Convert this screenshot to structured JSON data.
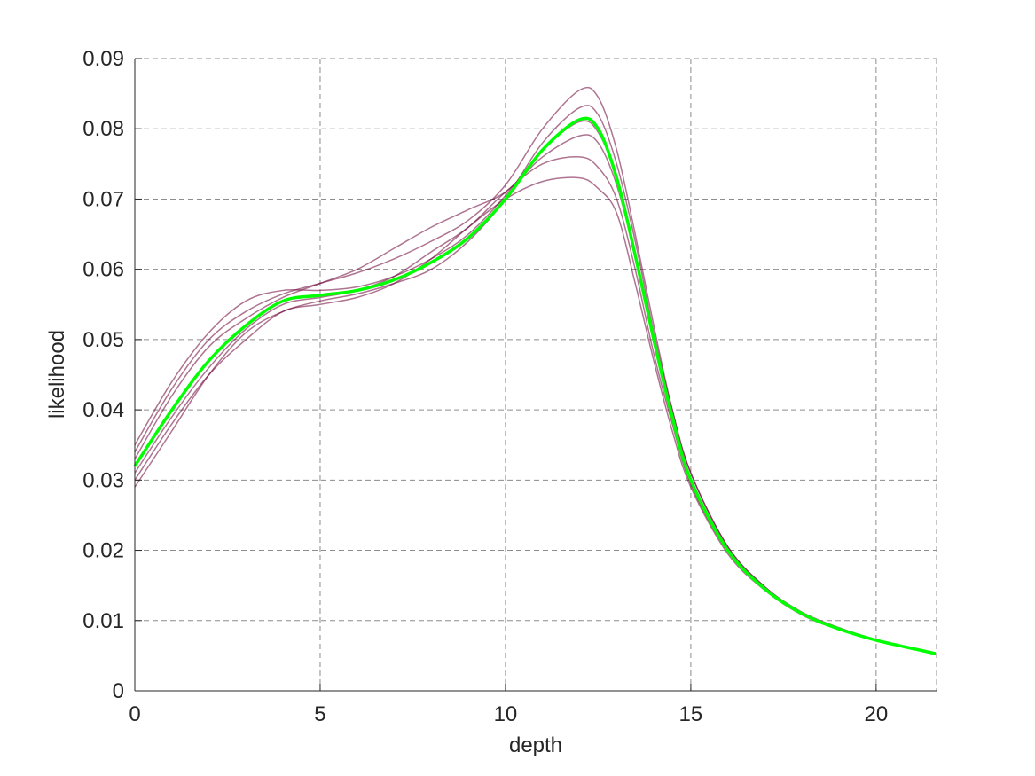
{
  "chart_data": {
    "type": "line",
    "xlabel": "depth",
    "ylabel": "likelihood",
    "xlim": [
      0,
      21.63
    ],
    "ylim": [
      0,
      0.09
    ],
    "xticks": [
      0,
      5,
      10,
      15,
      20
    ],
    "yticks": [
      0,
      0.01,
      0.02,
      0.03,
      0.04,
      0.05,
      0.06,
      0.07,
      0.08,
      0.09
    ],
    "grid": true,
    "x": [
      0,
      1,
      2,
      3,
      4,
      5,
      6,
      7,
      8,
      9,
      10,
      11,
      12,
      12.5,
      13,
      13.5,
      14,
      14.5,
      15,
      16,
      17,
      18,
      19,
      20,
      21,
      21.6
    ],
    "series": [
      {
        "color": "#6b0035",
        "values": [
          0.034,
          0.043,
          0.05,
          0.054,
          0.0565,
          0.058,
          0.0595,
          0.0615,
          0.064,
          0.067,
          0.072,
          0.08,
          0.0855,
          0.0845,
          0.077,
          0.065,
          0.052,
          0.04,
          0.031,
          0.0205,
          0.0148,
          0.0112,
          0.009,
          0.0073,
          0.006,
          0.0053
        ]
      },
      {
        "color": "#6b0035",
        "values": [
          0.03,
          0.038,
          0.045,
          0.05,
          0.054,
          0.055,
          0.056,
          0.058,
          0.0615,
          0.066,
          0.07,
          0.0725,
          0.073,
          0.0715,
          0.068,
          0.058,
          0.047,
          0.037,
          0.029,
          0.0195,
          0.0143,
          0.0108,
          0.0087,
          0.0072,
          0.006,
          0.0053
        ]
      },
      {
        "color": "#6b0035",
        "values": [
          0.033,
          0.042,
          0.049,
          0.053,
          0.056,
          0.058,
          0.06,
          0.063,
          0.066,
          0.0685,
          0.071,
          0.076,
          0.079,
          0.078,
          0.072,
          0.062,
          0.05,
          0.039,
          0.03,
          0.02,
          0.0145,
          0.011,
          0.0088,
          0.0072,
          0.006,
          0.0053
        ]
      },
      {
        "color": "#6b0035",
        "values": [
          0.029,
          0.037,
          0.045,
          0.051,
          0.054,
          0.0555,
          0.0565,
          0.058,
          0.06,
          0.064,
          0.07,
          0.078,
          0.083,
          0.082,
          0.075,
          0.064,
          0.051,
          0.04,
          0.031,
          0.0205,
          0.0148,
          0.011,
          0.0088,
          0.0073,
          0.006,
          0.0053
        ]
      },
      {
        "color": "#6b0035",
        "values": [
          0.035,
          0.044,
          0.051,
          0.0555,
          0.057,
          0.057,
          0.0575,
          0.059,
          0.0615,
          0.065,
          0.0705,
          0.077,
          0.081,
          0.0795,
          0.073,
          0.062,
          0.0495,
          0.0385,
          0.0295,
          0.0198,
          0.0144,
          0.0109,
          0.0087,
          0.0072,
          0.006,
          0.0053
        ]
      },
      {
        "color": "#6b0035",
        "values": [
          0.031,
          0.039,
          0.046,
          0.0515,
          0.055,
          0.056,
          0.057,
          0.059,
          0.0625,
          0.066,
          0.071,
          0.075,
          0.076,
          0.0745,
          0.07,
          0.06,
          0.048,
          0.038,
          0.0295,
          0.0198,
          0.0144,
          0.0109,
          0.0087,
          0.0072,
          0.006,
          0.0053
        ]
      },
      {
        "color": "#00ff00",
        "values": [
          0.032,
          0.04,
          0.047,
          0.052,
          0.0555,
          0.0563,
          0.057,
          0.0585,
          0.061,
          0.0645,
          0.07,
          0.077,
          0.0813,
          0.08,
          0.073,
          0.062,
          0.05,
          0.039,
          0.03,
          0.02,
          0.0145,
          0.011,
          0.0088,
          0.0072,
          0.006,
          0.0053
        ]
      }
    ]
  }
}
